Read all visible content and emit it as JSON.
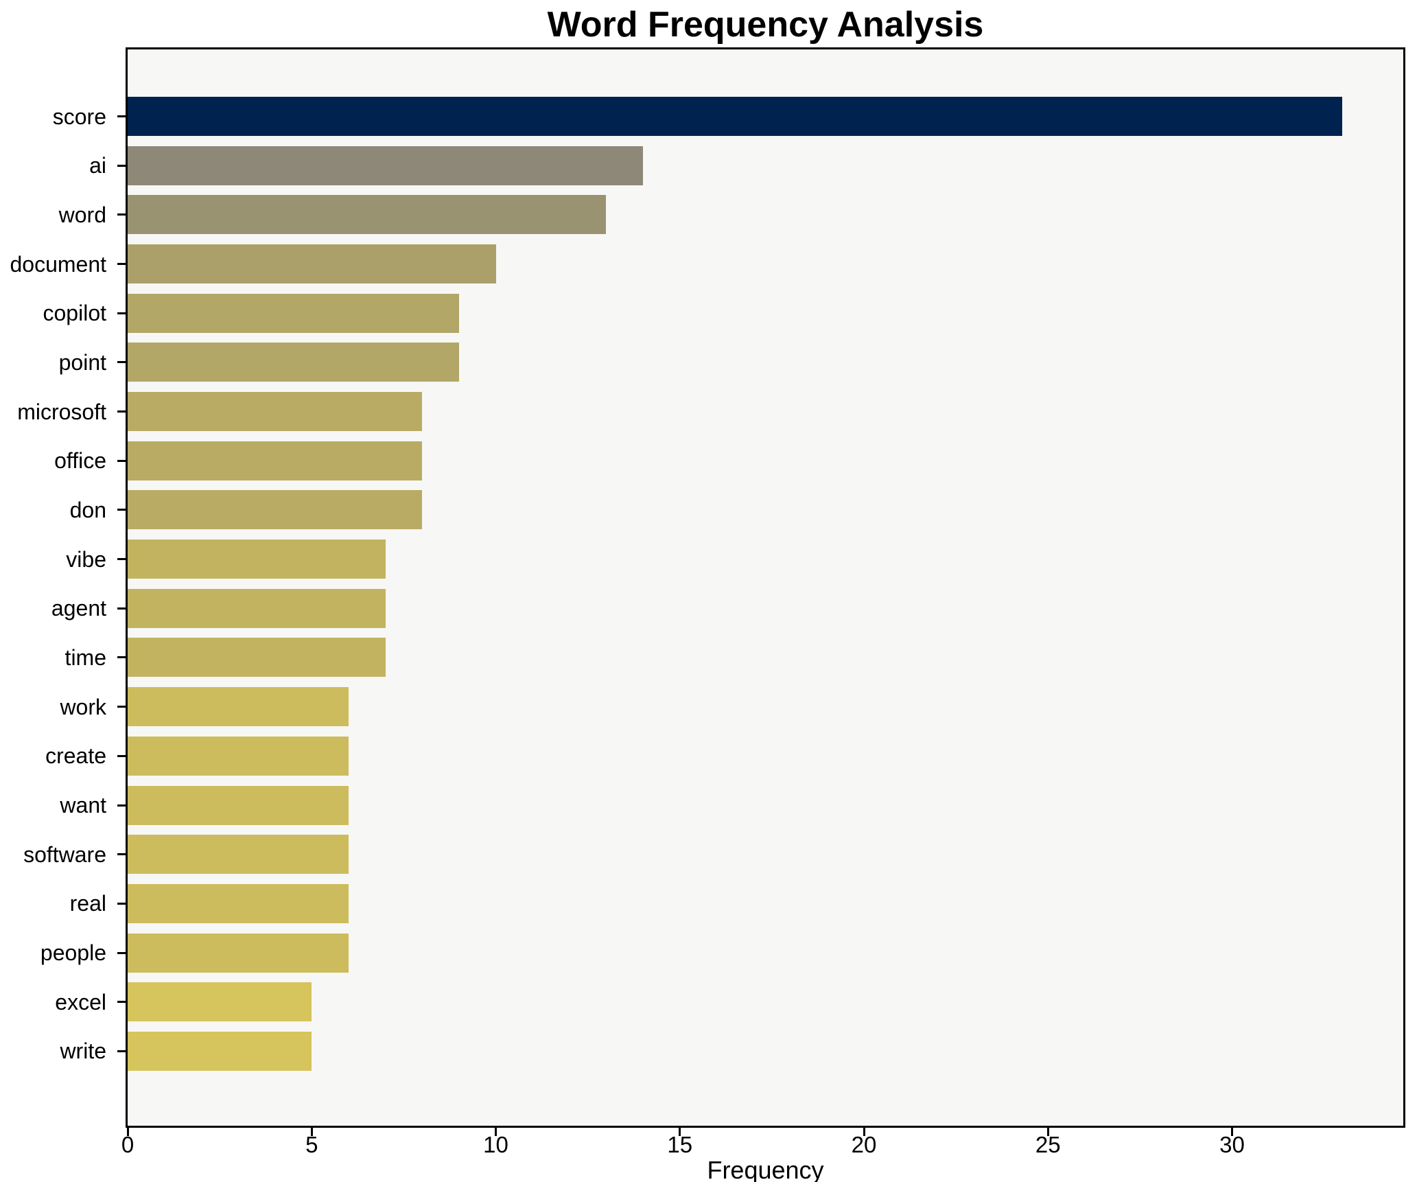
{
  "chart_data": {
    "type": "bar",
    "orientation": "horizontal",
    "title": "Word Frequency Analysis",
    "xlabel": "Frequency",
    "ylabel": "",
    "categories": [
      "score",
      "ai",
      "word",
      "document",
      "copilot",
      "point",
      "microsoft",
      "office",
      "don",
      "vibe",
      "agent",
      "time",
      "work",
      "create",
      "want",
      "software",
      "real",
      "people",
      "excel",
      "write"
    ],
    "values": [
      33,
      14,
      13,
      10,
      9,
      9,
      8,
      8,
      8,
      7,
      7,
      7,
      6,
      6,
      6,
      6,
      6,
      6,
      5,
      5
    ],
    "bar_colors": [
      "#00224e",
      "#8d8877",
      "#999372",
      "#aba06a",
      "#b2a767",
      "#b2a767",
      "#b9ab64",
      "#b9ab64",
      "#b9ab64",
      "#c2b360",
      "#c2b360",
      "#c2b360",
      "#ccbc5d",
      "#ccbc5d",
      "#ccbc5d",
      "#ccbc5d",
      "#ccbc5d",
      "#ccbc5d",
      "#d6c45c",
      "#d6c45c"
    ],
    "xticks": [
      0,
      5,
      10,
      15,
      20,
      25,
      30
    ],
    "xlim": [
      0,
      34.65
    ],
    "grid": false,
    "legend": null,
    "plot_background": "#f7f7f6",
    "axis_color": "#000000",
    "title_color": "#000000"
  }
}
